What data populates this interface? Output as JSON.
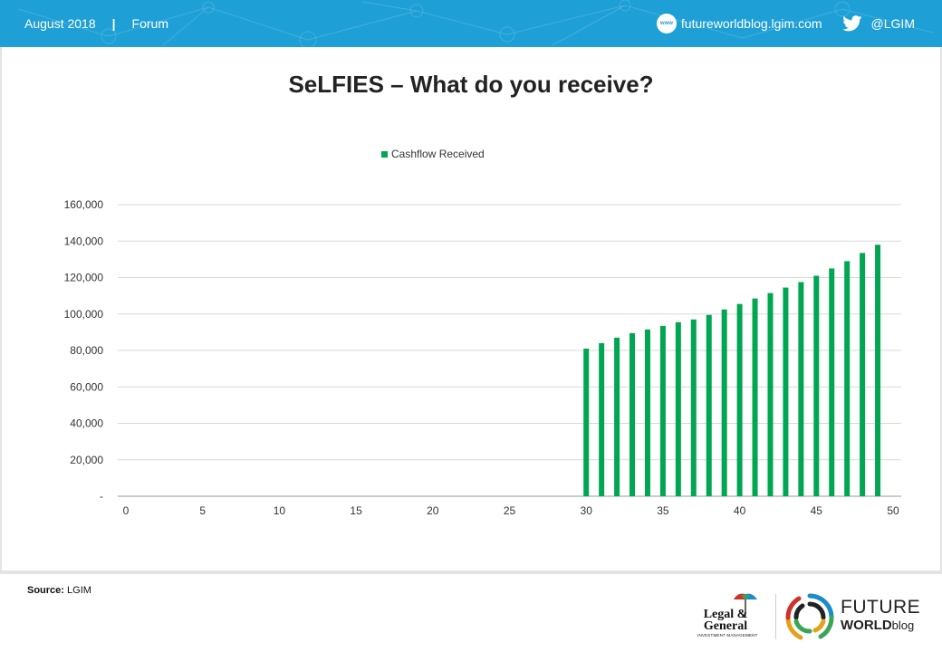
{
  "header": {
    "date": "August 2018",
    "separator": "|",
    "section": "Forum",
    "website": "futureworldblog.lgim.com",
    "www_badge": "www",
    "twitter_handle": "@LGIM",
    "icons": [
      "www-icon",
      "twitter-icon"
    ],
    "background_color": "#1e9fd6"
  },
  "title": "SeLFIES – What do you receive?",
  "source": {
    "label": "Source:",
    "value": "LGIM"
  },
  "logos": {
    "lg_line1": "Legal &",
    "lg_line2": "General",
    "lg_sub": "INVESTMENT MANAGEMENT",
    "fw_line1": "FUTURE",
    "fw_line2a": "WORLD",
    "fw_line2b": "blog"
  },
  "chart_data": {
    "type": "bar",
    "series": [
      {
        "name": "Cashflow Received",
        "color": "#00a651",
        "x": [
          30,
          31,
          32,
          33,
          34,
          35,
          36,
          37,
          38,
          39,
          40,
          41,
          42,
          43,
          44,
          45,
          46,
          47,
          48,
          49
        ],
        "values": [
          81000,
          84000,
          87000,
          89500,
          91500,
          93500,
          95500,
          97000,
          99500,
          102500,
          105500,
          108500,
          111500,
          114500,
          117500,
          121000,
          125000,
          129000,
          133500,
          138000
        ]
      }
    ],
    "xlim": [
      0,
      50
    ],
    "xticks": [
      0,
      5,
      10,
      15,
      20,
      25,
      30,
      35,
      40,
      45,
      50
    ],
    "ylim": [
      0,
      160000
    ],
    "yticks": [
      0,
      20000,
      40000,
      60000,
      80000,
      100000,
      120000,
      140000,
      160000
    ],
    "ytick_labels": [
      "-",
      "20,000",
      "40,000",
      "60,000",
      "80,000",
      "100,000",
      "120,000",
      "140,000",
      "160,000"
    ],
    "grid": "horizontal",
    "legend": "top-center"
  }
}
